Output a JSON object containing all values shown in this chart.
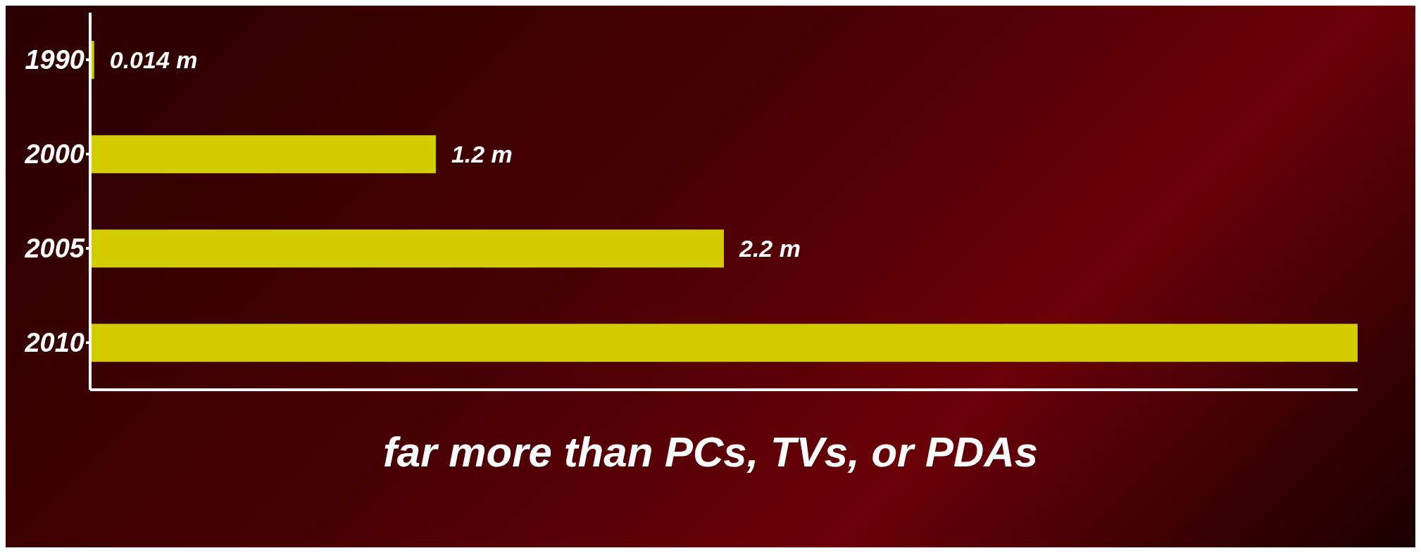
{
  "chart_data": {
    "type": "bar",
    "orientation": "horizontal",
    "categories": [
      "1990",
      "2000",
      "2005",
      "2010"
    ],
    "values": [
      0.014,
      1.2,
      2.2,
      4.4
    ],
    "color": "#d2cc00",
    "value_labels": [
      "0.014 m",
      "1.2 m",
      "2.2 m",
      null
    ],
    "annotations": [
      "far more than PCs, TVs, or PDAs"
    ]
  }
}
